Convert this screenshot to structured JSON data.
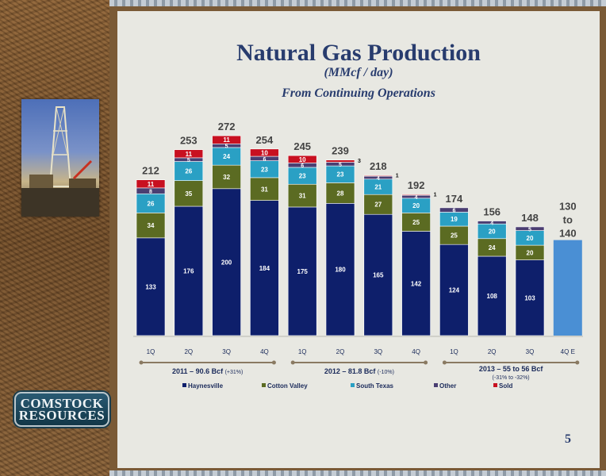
{
  "slide": {
    "title": "Natural Gas Production",
    "subtitle": "(MMcf / day)",
    "subtitle2": "From Continuing Operations",
    "page_number": "5",
    "logo_text": "COMSTOCK RESOURCES"
  },
  "colors": {
    "haynesville": "#0e1f6b",
    "cotton_valley": "#5b6b22",
    "south_texas": "#2aa0c4",
    "other": "#4a3e72",
    "sold": "#c81020",
    "estimate": "#4a8fd4",
    "title": "#283c6e"
  },
  "chart_data": {
    "type": "bar",
    "stacked": true,
    "categories": [
      "1Q",
      "2Q",
      "3Q",
      "4Q",
      "1Q",
      "2Q",
      "3Q",
      "4Q",
      "1Q",
      "2Q",
      "3Q",
      "4Q E"
    ],
    "series": [
      {
        "name": "Haynesville",
        "values": [
          133,
          176,
          200,
          184,
          175,
          180,
          165,
          142,
          124,
          108,
          103,
          null
        ]
      },
      {
        "name": "Cotton Valley",
        "values": [
          34,
          35,
          32,
          31,
          31,
          28,
          27,
          25,
          25,
          24,
          20,
          null
        ]
      },
      {
        "name": "South Texas",
        "values": [
          26,
          26,
          24,
          23,
          23,
          23,
          21,
          20,
          19,
          20,
          20,
          null
        ]
      },
      {
        "name": "Other",
        "values": [
          8,
          5,
          5,
          6,
          6,
          5,
          4,
          4,
          6,
          4,
          5,
          null
        ]
      },
      {
        "name": "Sold",
        "values": [
          11,
          11,
          11,
          10,
          10,
          3,
          1,
          1,
          0,
          0,
          0,
          null
        ]
      }
    ],
    "totals": [
      "212",
      "253",
      "272",
      "254",
      "245",
      "239",
      "218",
      "192",
      "174",
      "156",
      "148",
      "130 to 140"
    ],
    "estimate": {
      "index": 11,
      "low": 130,
      "high": 140,
      "label": "130 to 140"
    },
    "groups": [
      {
        "label": "2011 – 90.6 Bcf",
        "sub": "(+31%)",
        "from": 0,
        "to": 3
      },
      {
        "label": "2012 – 81.8 Bcf",
        "sub": "(-10%)",
        "from": 4,
        "to": 7
      },
      {
        "label": "2013 – 55 to 56 Bcf",
        "sub": "(-31% to -32%)",
        "from": 8,
        "to": 11
      }
    ],
    "legend": [
      "Haynesville",
      "Cotton Valley",
      "South Texas",
      "Other",
      "Sold"
    ],
    "legend_position": "bottom",
    "ylim": [
      0,
      280
    ],
    "grid": false
  }
}
